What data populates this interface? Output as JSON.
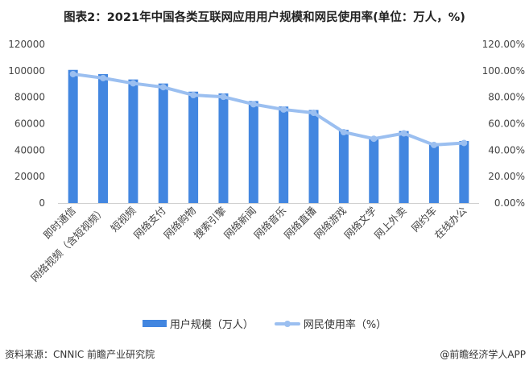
{
  "title": "图表2：2021年中国各类互联网应用用户规模和网民使用率(单位：万人，%)",
  "chart_data": {
    "type": "bar",
    "title": "图表2：2021年中国各类互联网应用用户规模和网民使用率(单位：万人，%)",
    "categories": [
      "即时通信",
      "网络视频（含短视频）",
      "短视频",
      "网络支付",
      "网络购物",
      "搜索引擎",
      "网络新闻",
      "网络音乐",
      "网络直播",
      "网络游戏",
      "网络文学",
      "网上外卖",
      "网约车",
      "在线办公"
    ],
    "series": [
      {
        "name": "用户规模（万人）",
        "type": "bar",
        "axis": "left",
        "color": "#4286e0",
        "values": [
          100666,
          97471,
          93415,
          90363,
          84210,
          82884,
          77109,
          72946,
          70337,
          55354,
          50159,
          54416,
          45261,
          46884
        ]
      },
      {
        "name": "网民使用率（%）",
        "type": "line",
        "axis": "right",
        "color": "#9bbff0",
        "values": [
          97.5,
          94.5,
          90.5,
          87.6,
          81.6,
          80.3,
          74.7,
          70.7,
          68.2,
          53.6,
          48.6,
          52.7,
          43.9,
          45.4
        ]
      }
    ],
    "ylim_left": [
      0,
      120000
    ],
    "yticks_left": [
      "0",
      "20000",
      "40000",
      "60000",
      "80000",
      "100000",
      "120000"
    ],
    "ylim_right": [
      0,
      120
    ],
    "yticks_right": [
      "0.00%",
      "20.00%",
      "40.00%",
      "60.00%",
      "80.00%",
      "100.00%",
      "120.00%"
    ],
    "grid": false,
    "legend": "bottom"
  },
  "legend": {
    "bar": "用户规模（万人）",
    "line": "网民使用率（%）"
  },
  "source": "资料来源：CNNIC 前瞻产业研究院",
  "credit": "@前瞻经济学人APP"
}
